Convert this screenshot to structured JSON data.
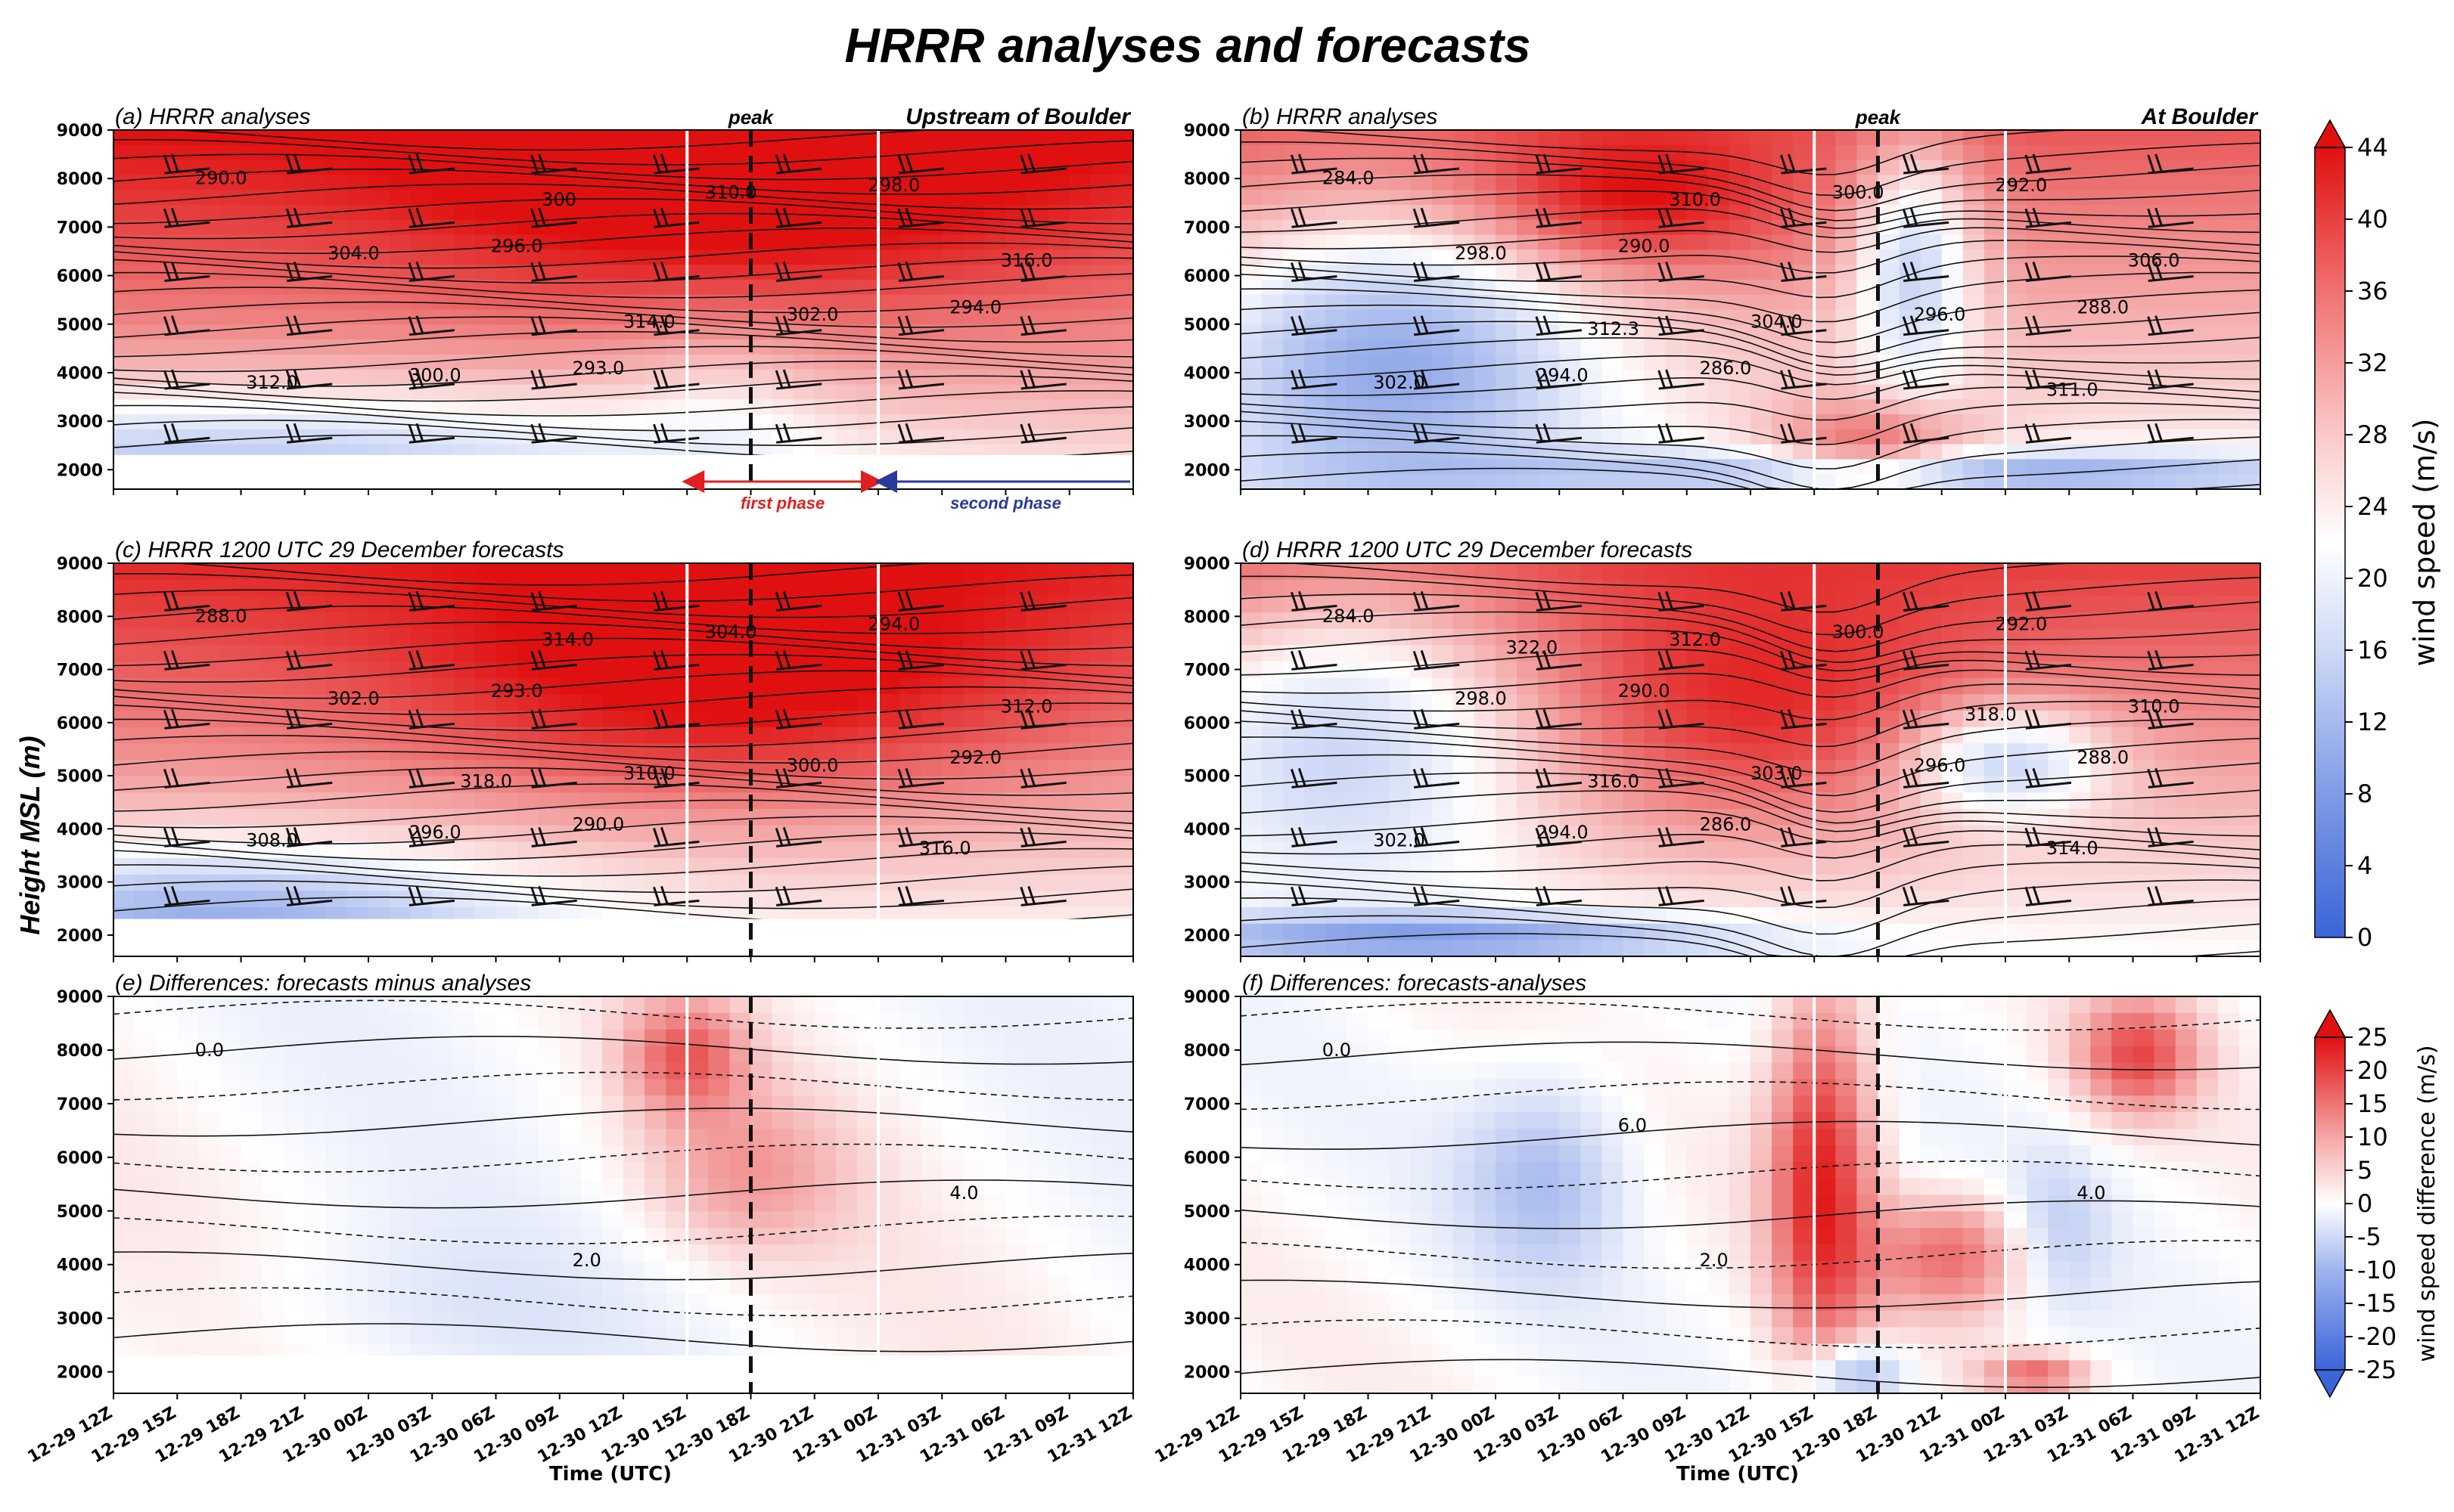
{
  "figure": {
    "title": "HRRR analyses and forecasts",
    "ylabel": "Height MSL (m)",
    "xlabel": "Time (UTC)"
  },
  "chart_data": {
    "type": "heatmap",
    "title": "HRRR analyses and forecasts",
    "x_ticks": [
      "12-29 12Z",
      "12-29 15Z",
      "12-29 18Z",
      "12-29 21Z",
      "12-30 00Z",
      "12-30 03Z",
      "12-30 06Z",
      "12-30 09Z",
      "12-30 12Z",
      "12-30 15Z",
      "12-30 18Z",
      "12-30 21Z",
      "12-31 00Z",
      "12-31 03Z",
      "12-31 06Z",
      "12-31 09Z",
      "12-31 12Z"
    ],
    "y_ticks": [
      2000,
      3000,
      4000,
      5000,
      6000,
      7000,
      8000,
      9000
    ],
    "ylim": [
      1600,
      9000
    ],
    "xlabel": "Time (UTC)",
    "ylabel": "Height MSL (m)",
    "markers": {
      "first_phase_start": "12-30 15Z",
      "peak": "12-30 18Z",
      "second_phase_start": "12-31 00Z"
    },
    "phase_labels": {
      "peak": "peak",
      "first": "first phase",
      "second": "second phase"
    },
    "panels": [
      {
        "id": "a",
        "title": "(a) HRRR analyses",
        "location": "Upstream of Boulder",
        "field": "wind speed",
        "contour_labels": [
          "290.0",
          "293.0",
          "294.0",
          "296.0",
          "298.0",
          "300.0",
          "302.0",
          "304.0",
          "310.0",
          "312.0",
          "314.0",
          "316.0",
          "300"
        ]
      },
      {
        "id": "b",
        "title": "(b) HRRR analyses",
        "location": "At Boulder",
        "field": "wind speed",
        "contour_labels": [
          "284.0",
          "286.0",
          "288.0",
          "290.0",
          "292.0",
          "294.0",
          "296.0",
          "298.0",
          "300.0",
          "302.0",
          "304.0",
          "306.0",
          "310.0",
          "311.0",
          "312.3"
        ]
      },
      {
        "id": "c",
        "title": "(c) HRRR 1200 UTC 29 December forecasts",
        "location": "",
        "field": "wind speed",
        "contour_labels": [
          "288.0",
          "290.0",
          "292.0",
          "293.0",
          "294.0",
          "296.0",
          "300.0",
          "302.0",
          "304.0",
          "308.0",
          "310.0",
          "312.0",
          "314.0",
          "316.0",
          "318.0"
        ]
      },
      {
        "id": "d",
        "title": "(d) HRRR 1200 UTC 29 December forecasts",
        "location": "",
        "field": "wind speed",
        "contour_labels": [
          "284.0",
          "286.0",
          "288.0",
          "290.0",
          "292.0",
          "294.0",
          "296.0",
          "298.0",
          "300.0",
          "302.0",
          "303.0",
          "310.0",
          "312.0",
          "314.0",
          "316.0",
          "318.0",
          "322.0"
        ]
      },
      {
        "id": "e",
        "title": "(e) Differences: forecasts minus analyses",
        "location": "",
        "field": "wind speed difference",
        "contour_labels": [
          "0.0",
          "2.0",
          "4.0"
        ]
      },
      {
        "id": "f",
        "title": "(f) Differences: forecasts-analyses",
        "location": "",
        "field": "wind speed difference",
        "contour_labels": [
          "0.0",
          "2.0",
          "4.0",
          "6.0"
        ]
      }
    ],
    "colorbars": [
      {
        "label": "wind speed (m/s)",
        "ticks": [
          0,
          4,
          8,
          12,
          16,
          20,
          24,
          28,
          32,
          36,
          40,
          44
        ],
        "range": [
          0,
          44
        ],
        "extend": "max"
      },
      {
        "label": "wind speed difference (m/s)",
        "ticks": [
          -25,
          -20,
          -15,
          -10,
          -5,
          0,
          5,
          10,
          15,
          20,
          25
        ],
        "range": [
          -25,
          25
        ],
        "extend": "both"
      }
    ]
  },
  "colors": {
    "low": "#3a64d8",
    "mid": "#ffffff",
    "high": "#e01010",
    "phase1": "#e02020",
    "phase2": "#2a3a9a"
  }
}
